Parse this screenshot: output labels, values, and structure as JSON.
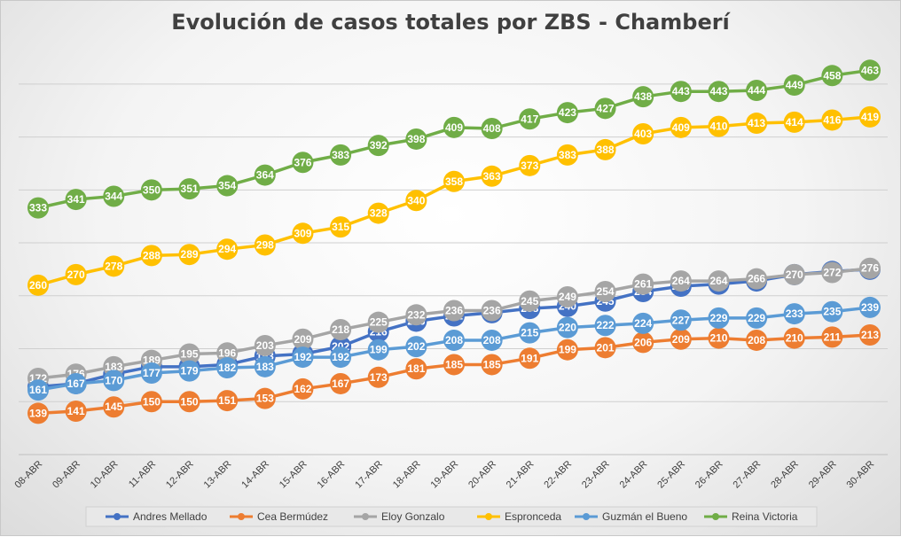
{
  "chart_data": {
    "type": "line",
    "title": "Evolución de casos totales por ZBS - Chamberí",
    "xlabel": "",
    "ylabel": "",
    "ylim": [
      100,
      480
    ],
    "grid": true,
    "legend_position": "bottom",
    "categories": [
      "08-ABR",
      "09-ABR",
      "10-ABR",
      "11-ABR",
      "12-ABR",
      "13-ABR",
      "14-ABR",
      "15-ABR",
      "16-ABR",
      "17-ABR",
      "18-ABR",
      "19-ABR",
      "20-ABR",
      "21-ABR",
      "22-ABR",
      "23-ABR",
      "24-ABR",
      "25-ABR",
      "26-ABR",
      "27-ABR",
      "28-ABR",
      "29-ABR",
      "30-ABR"
    ],
    "series": [
      {
        "name": "Andres Mellado",
        "color": "#4472C4",
        "values": [
          164,
          167,
          176,
          183,
          183,
          185,
          193,
          195,
          202,
          216,
          226,
          231,
          234,
          238,
          240,
          245,
          254,
          259,
          261,
          264,
          270,
          273,
          275
        ]
      },
      {
        "name": "Cea Bermúdez",
        "color": "#ED7D31",
        "values": [
          139,
          141,
          145,
          150,
          150,
          151,
          153,
          162,
          167,
          173,
          181,
          185,
          185,
          191,
          199,
          201,
          206,
          209,
          210,
          208,
          210,
          211,
          213
        ]
      },
      {
        "name": "Eloy Gonzalo",
        "color": "#A5A5A5",
        "values": [
          172,
          176,
          183,
          189,
          195,
          196,
          203,
          209,
          218,
          225,
          232,
          236,
          236,
          245,
          249,
          254,
          261,
          264,
          264,
          266,
          270,
          272,
          276
        ]
      },
      {
        "name": "Espronceda",
        "color": "#FFC000",
        "values": [
          260,
          270,
          278,
          288,
          289,
          294,
          298,
          309,
          315,
          328,
          340,
          358,
          363,
          373,
          383,
          388,
          403,
          409,
          410,
          413,
          414,
          416,
          419
        ]
      },
      {
        "name": "Guzmán el Bueno",
        "color": "#5B9BD5",
        "values": [
          161,
          167,
          170,
          177,
          179,
          182,
          183,
          192,
          192,
          199,
          202,
          208,
          208,
          215,
          220,
          222,
          224,
          227,
          229,
          229,
          233,
          235,
          239
        ]
      },
      {
        "name": "Reina Victoria",
        "color": "#70AD47",
        "values": [
          333,
          341,
          344,
          350,
          351,
          354,
          364,
          376,
          383,
          392,
          398,
          409,
          408,
          417,
          423,
          427,
          438,
          443,
          443,
          444,
          449,
          458,
          463
        ]
      }
    ]
  }
}
